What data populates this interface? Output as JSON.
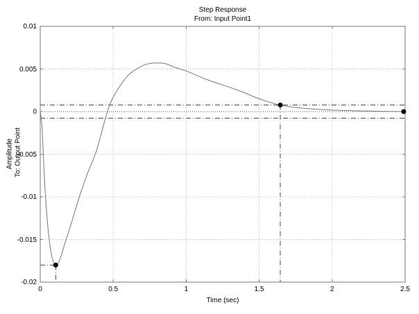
{
  "figure": {
    "title": "Step Response",
    "subtitle": "From: Input Point1",
    "xlabel": "Time (sec)",
    "ylabel_outer": "Amplitude",
    "ylabel_inner": "To: Output Point"
  },
  "chart_data": {
    "type": "line",
    "title": "Step Response",
    "subtitle": "From: Input Point1",
    "xlabel": "Time (sec)",
    "ylabel": "Amplitude (To: Output Point)",
    "xlim": [
      0,
      2.5
    ],
    "ylim": [
      -0.02,
      0.01
    ],
    "xticks": [
      0,
      0.5,
      1,
      1.5,
      2,
      2.5
    ],
    "yticks": [
      0.01,
      0.005,
      0,
      -0.005,
      -0.01,
      -0.015,
      -0.02
    ],
    "grid": true,
    "legend": "none",
    "zero_line": 0,
    "settling_bounds": [
      0.00077,
      -0.00077
    ],
    "series": [
      {
        "name": "step-response",
        "points": [
          [
            0,
            0
          ],
          [
            0.005,
            -0.0006
          ],
          [
            0.012,
            -0.0018
          ],
          [
            0.02,
            -0.0046
          ],
          [
            0.03,
            -0.0082
          ],
          [
            0.045,
            -0.0121
          ],
          [
            0.06,
            -0.0148
          ],
          [
            0.075,
            -0.0166
          ],
          [
            0.09,
            -0.0176
          ],
          [
            0.106,
            -0.018
          ],
          [
            0.125,
            -0.0177
          ],
          [
            0.145,
            -0.0168
          ],
          [
            0.17,
            -0.0154
          ],
          [
            0.22,
            -0.0127
          ],
          [
            0.27,
            -0.0099
          ],
          [
            0.325,
            -0.0072
          ],
          [
            0.385,
            -0.0046
          ],
          [
            0.44,
            -0.0012
          ],
          [
            0.47,
            0.0005
          ],
          [
            0.5,
            0.0017
          ],
          [
            0.55,
            0.0031
          ],
          [
            0.6,
            0.0042
          ],
          [
            0.65,
            0.0049
          ],
          [
            0.72,
            0.0055
          ],
          [
            0.78,
            0.0057
          ],
          [
            0.85,
            0.00565
          ],
          [
            0.92,
            0.0052
          ],
          [
            1.01,
            0.0047
          ],
          [
            1.15,
            0.0037
          ],
          [
            1.29,
            0.0029
          ],
          [
            1.4,
            0.0022
          ],
          [
            1.5,
            0.0015
          ],
          [
            1.645,
            0.00077
          ],
          [
            1.8,
            0.0004
          ],
          [
            2.0,
            0.00018
          ],
          [
            2.2,
            8e-05
          ],
          [
            2.35,
            3e-05
          ],
          [
            2.49,
            0
          ]
        ]
      }
    ],
    "markers": [
      {
        "name": "undershoot-minimum-marker",
        "t": 0.106,
        "y": -0.018,
        "helpers": [
          "h-to-left-axis",
          "v-to-bottom-axis"
        ]
      },
      {
        "name": "settling-time-marker",
        "t": 1.645,
        "y": 0.00077,
        "helpers": [
          "v-to-bottom-axis"
        ]
      },
      {
        "name": "final-value-marker",
        "t": 2.49,
        "y": 0,
        "helpers": []
      }
    ],
    "colors": {
      "background": "#ffffff",
      "axis": "#777777",
      "grid": "#b8b8b8",
      "zero_line": "#4a4a4a",
      "bounds": "#4a4a4a",
      "guide": "#4a4a4a",
      "curve": "#777777",
      "marker": "#000000",
      "text": "#000000"
    }
  }
}
